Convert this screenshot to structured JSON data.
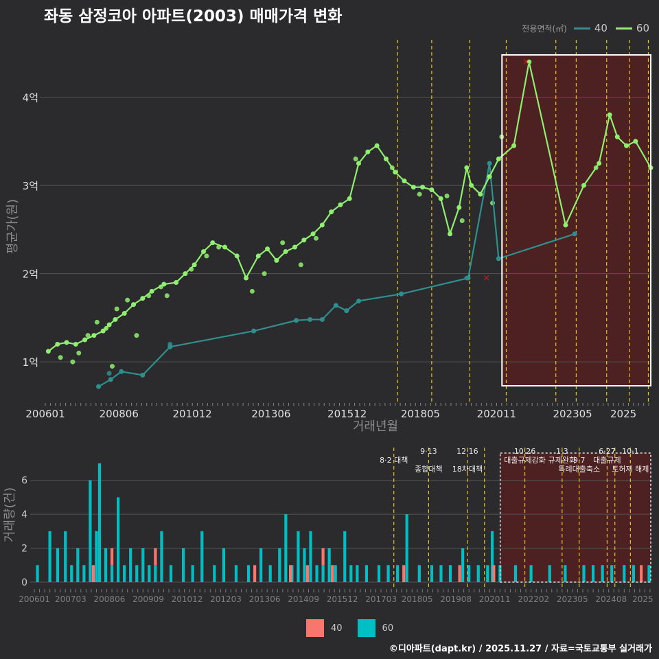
{
  "title": "좌동 삼정코아 아파트(2003) 매매가격 변화",
  "legend": {
    "title": "전용면적(㎡)",
    "items": [
      {
        "label": "40",
        "line_color": "#2f8f8f",
        "bar_color": "#f8766d"
      },
      {
        "label": "60",
        "line_color": "#90ee70",
        "bar_color": "#00bfc4"
      }
    ]
  },
  "footer": "©디아파트(dapt.kr) / 2025.11.27 / 자료=국토교통부 실거래가",
  "colors": {
    "background": "#2b2b2d",
    "grid": "#555555",
    "policy_line": "#e6c619",
    "highlight_fill": "#5a1f1f",
    "cancel_mark": "#d01818"
  },
  "chart_data": [
    {
      "type": "line",
      "id": "price",
      "title": "좌동 삼정코아 아파트(2003) 매매가격 변화",
      "xlabel": "거래년월",
      "ylabel": "평균가(원)",
      "xlim": [
        2006.0,
        2025.9
      ],
      "ylim": [
        0.55,
        4.65
      ],
      "x_ticks": [
        2006.0,
        2008.42,
        2010.83,
        2013.42,
        2015.92,
        2018.33,
        2020.83,
        2023.33,
        2025.0
      ],
      "x_tick_labels": [
        "200601",
        "200806",
        "201012",
        "201306",
        "201512",
        "201805",
        "202011",
        "202305",
        "2025"
      ],
      "y_ticks": [
        1,
        2,
        3,
        4
      ],
      "y_tick_labels": [
        "1억",
        "2억",
        "3억",
        "4억"
      ],
      "highlight_range": [
        2020.83,
        2025.9
      ],
      "policy_lines": [
        2017.58,
        2018.7,
        2019.95,
        2021.15,
        2022.78,
        2023.45,
        2024.45,
        2025.2,
        2025.82
      ],
      "series": [
        {
          "name": "40",
          "color": "#2f8f8f",
          "x": [
            2007.75,
            2008.15,
            2008.5,
            2009.2,
            2010.1,
            2012.85,
            2014.25,
            2014.7,
            2015.1,
            2015.55,
            2015.9,
            2016.3,
            2017.7,
            2019.9,
            2020.6,
            2020.9,
            2023.4
          ],
          "y": [
            0.72,
            0.8,
            0.89,
            0.85,
            1.17,
            1.35,
            1.47,
            1.48,
            1.48,
            1.64,
            1.58,
            1.69,
            1.77,
            1.95,
            3.25,
            2.17,
            2.45
          ]
        },
        {
          "name": "60",
          "color": "#90ee70",
          "x": [
            2006.1,
            2006.4,
            2006.7,
            2007.0,
            2007.3,
            2007.6,
            2007.9,
            2008.1,
            2008.3,
            2008.6,
            2008.9,
            2009.2,
            2009.5,
            2009.9,
            2010.3,
            2010.6,
            2010.9,
            2011.2,
            2011.5,
            2011.9,
            2012.3,
            2012.6,
            2013.0,
            2013.3,
            2013.6,
            2013.9,
            2014.2,
            2014.5,
            2014.8,
            2015.1,
            2015.4,
            2015.7,
            2016.0,
            2016.3,
            2016.6,
            2016.9,
            2017.2,
            2017.5,
            2017.8,
            2018.1,
            2018.4,
            2018.7,
            2019.0,
            2019.3,
            2019.6,
            2019.85,
            2020.0,
            2020.3,
            2020.6,
            2020.9,
            2021.4,
            2021.9,
            2023.1,
            2023.7,
            2024.2,
            2024.55,
            2024.8,
            2025.1,
            2025.4,
            2025.9
          ],
          "y": [
            1.12,
            1.2,
            1.22,
            1.2,
            1.25,
            1.3,
            1.35,
            1.42,
            1.48,
            1.55,
            1.65,
            1.72,
            1.8,
            1.88,
            1.9,
            2.0,
            2.1,
            2.25,
            2.35,
            2.3,
            2.2,
            1.95,
            2.2,
            2.28,
            2.15,
            2.25,
            2.3,
            2.38,
            2.45,
            2.55,
            2.7,
            2.78,
            2.85,
            3.25,
            3.38,
            3.45,
            3.3,
            3.15,
            3.05,
            2.98,
            2.98,
            2.95,
            2.85,
            2.45,
            2.75,
            3.2,
            3.0,
            2.9,
            3.1,
            3.3,
            3.45,
            4.4,
            2.55,
            3.0,
            3.25,
            3.8,
            3.55,
            3.45,
            3.5,
            3.2
          ]
        }
      ],
      "scatter": [
        {
          "name": "60",
          "x": [
            2006.5,
            2006.9,
            2007.1,
            2007.4,
            2007.7,
            2008.0,
            2008.2,
            2008.35,
            2008.7,
            2009.0,
            2009.4,
            2009.8,
            2010.0,
            2010.8,
            2011.3,
            2011.7,
            2012.8,
            2013.2,
            2013.8,
            2014.4,
            2014.9,
            2016.2,
            2017.4,
            2018.3,
            2019.2,
            2019.7,
            2020.7,
            2021.0,
            2024.1
          ],
          "y": [
            1.05,
            1.0,
            1.1,
            1.3,
            1.45,
            1.38,
            0.95,
            1.6,
            1.7,
            1.3,
            1.75,
            1.85,
            1.75,
            2.05,
            2.2,
            2.3,
            1.8,
            2.0,
            2.35,
            2.1,
            2.4,
            3.3,
            3.2,
            2.9,
            2.88,
            2.6,
            2.8,
            3.55,
            3.2
          ]
        },
        {
          "name": "40",
          "x": [
            2008.1,
            2010.1,
            2019.85
          ],
          "y": [
            0.87,
            1.2,
            1.95
          ]
        }
      ],
      "cancelled_marks": [
        {
          "x": 2020.5,
          "y": 1.95
        },
        {
          "x": 2021.8,
          "y": 4.4
        }
      ]
    },
    {
      "type": "bar",
      "id": "volume",
      "ylabel": "거래량(건)",
      "ylim": [
        0,
        7.2
      ],
      "y_ticks": [
        0,
        2,
        4,
        6
      ],
      "y_tick_labels": [
        "0",
        "2",
        "4",
        "6"
      ],
      "x_ticks": [
        2006.0,
        2007.17,
        2008.42,
        2009.67,
        2010.92,
        2012.17,
        2013.42,
        2014.67,
        2015.92,
        2017.17,
        2018.33,
        2019.58,
        2020.83,
        2022.08,
        2023.33,
        2024.58,
        2025.6
      ],
      "x_tick_labels": [
        "200601",
        "200703",
        "200806",
        "200909",
        "201012",
        "201203",
        "201306",
        "201409",
        "201512",
        "201703",
        "201805",
        "201908",
        "202011",
        "202202",
        "202305",
        "202408",
        "2025"
      ],
      "highlight_range": [
        2020.83,
        2025.9
      ],
      "policy_lines": [
        2017.58,
        2018.7,
        2019.95,
        2020.5,
        2021.8,
        2023.0,
        2023.55,
        2024.45,
        2024.7,
        2025.2
      ],
      "annotations": [
        {
          "x": 2017.58,
          "row": 0,
          "text": "8·2 대책"
        },
        {
          "x": 2018.7,
          "row": -1,
          "text": "9·13"
        },
        {
          "x": 2018.7,
          "row": 1,
          "text": "종합대책"
        },
        {
          "x": 2019.95,
          "row": -1,
          "text": "12·16"
        },
        {
          "x": 2019.95,
          "row": 1,
          "text": "18차대책"
        },
        {
          "x": 2021.8,
          "row": -1,
          "text": "10·26"
        },
        {
          "x": 2021.8,
          "row": 0,
          "text": "대출규제강화"
        },
        {
          "x": 2023.0,
          "row": -1,
          "text": "1·3"
        },
        {
          "x": 2023.0,
          "row": 0,
          "text": "규제완화"
        },
        {
          "x": 2023.55,
          "row": 0,
          "text": "9·7"
        },
        {
          "x": 2023.55,
          "row": 1,
          "text": "특례대출축소"
        },
        {
          "x": 2024.45,
          "row": -1,
          "text": "6·27"
        },
        {
          "x": 2024.45,
          "row": 0,
          "text": "대출규제"
        },
        {
          "x": 2025.2,
          "row": -1,
          "text": "10·1"
        },
        {
          "x": 2025.2,
          "row": 1,
          "text": "토허제 해제"
        }
      ],
      "series": [
        {
          "name": "60",
          "color": "#00bfc4",
          "x": [
            2006.1,
            2006.5,
            2006.75,
            2007.0,
            2007.2,
            2007.4,
            2007.6,
            2007.8,
            2008.0,
            2008.1,
            2008.3,
            2008.5,
            2008.7,
            2008.9,
            2009.1,
            2009.3,
            2009.5,
            2009.7,
            2009.9,
            2010.1,
            2010.4,
            2010.8,
            2011.1,
            2011.4,
            2011.8,
            2012.1,
            2012.5,
            2012.9,
            2013.3,
            2013.6,
            2013.9,
            2014.1,
            2014.3,
            2014.5,
            2014.7,
            2014.9,
            2015.1,
            2015.3,
            2015.5,
            2015.7,
            2016.0,
            2016.2,
            2016.4,
            2016.7,
            2017.1,
            2017.4,
            2017.7,
            2018.0,
            2018.4,
            2018.8,
            2019.1,
            2019.4,
            2019.8,
            2020.0,
            2020.3,
            2020.6,
            2020.75,
            2021.0,
            2021.5,
            2022.0,
            2022.6,
            2023.1,
            2023.7,
            2024.0,
            2024.3,
            2024.6,
            2025.0,
            2025.3,
            2025.8
          ],
          "y": [
            1,
            3,
            2,
            3,
            1,
            2,
            1,
            6,
            3,
            7,
            2,
            1,
            5,
            1,
            2,
            1,
            2,
            1,
            1,
            3,
            1,
            2,
            1,
            3,
            1,
            2,
            1,
            1,
            2,
            1,
            2,
            4,
            1,
            3,
            2,
            3,
            1,
            1,
            2,
            1,
            3,
            1,
            1,
            1,
            1,
            1,
            1,
            4,
            1,
            1,
            1,
            1,
            2,
            1,
            1,
            1,
            3,
            1,
            1,
            1,
            1,
            1,
            1,
            1,
            1,
            1,
            1,
            1,
            1
          ]
        },
        {
          "name": "40",
          "color": "#f8766d",
          "x": [
            2007.9,
            2008.5,
            2009.9,
            2013.1,
            2014.25,
            2014.8,
            2015.3,
            2015.6,
            2017.9,
            2019.7,
            2020.8,
            2025.55
          ],
          "y": [
            1,
            1,
            1,
            1,
            1,
            1,
            1,
            1,
            1,
            1,
            1,
            1
          ]
        }
      ]
    }
  ]
}
